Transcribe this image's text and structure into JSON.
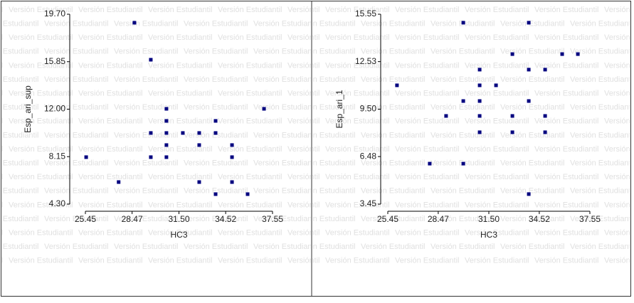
{
  "watermark": "Versión Estudiantil",
  "chart_data": [
    {
      "type": "scatter",
      "x_label": "HC3",
      "y_label": "Esp_ari_sup",
      "color": "#00007f",
      "xlim": [
        25.45,
        37.55
      ],
      "ylim": [
        4.3,
        19.7
      ],
      "xticks": [
        25.45,
        {
          "value": 28.47,
          "label": "28.47"
        },
        {
          "value": 31.5,
          "label": "31.50"
        },
        34.52,
        37.55
      ],
      "yticks": [
        {
          "value": 4.3,
          "label": "4.30"
        },
        8.15,
        {
          "value": 12,
          "label": "12.00"
        },
        15.85,
        {
          "value": 19.7,
          "label": "19.70"
        }
      ],
      "grid": false,
      "x": [
        28.62,
        29.68,
        30.69,
        37.0,
        33.87,
        30.69,
        29.68,
        30.69,
        31.75,
        32.81,
        33.87,
        30.69,
        32.81,
        34.93,
        25.5,
        29.68,
        30.69,
        34.93,
        27.6,
        32.81,
        34.93,
        33.87,
        35.94
      ],
      "y": [
        19.01,
        16.01,
        12.03,
        12.03,
        11.05,
        11.05,
        10.07,
        10.07,
        10.07,
        10.07,
        10.07,
        9.09,
        9.09,
        9.09,
        8.11,
        8.11,
        8.11,
        8.11,
        6.09,
        6.09,
        6.09,
        5.11,
        5.11
      ]
    },
    {
      "type": "scatter",
      "x_label": "HC3",
      "y_label": "Esp_ari_1",
      "color": "#00007f",
      "xlim": [
        25.45,
        37.55
      ],
      "ylim": [
        3.45,
        15.55
      ],
      "xticks": [
        25.45,
        {
          "value": 28.47,
          "label": "28.47"
        },
        {
          "value": 31.5,
          "label": "31.50"
        },
        34.52,
        37.55
      ],
      "yticks": [
        3.45,
        6.48,
        {
          "value": 9.5,
          "label": "9.50"
        },
        12.53,
        15.55
      ],
      "grid": false,
      "x": [
        29.97,
        33.89,
        32.91,
        35.89,
        36.83,
        30.95,
        33.89,
        34.87,
        26.0,
        30.95,
        31.93,
        29.97,
        30.95,
        33.89,
        28.94,
        30.95,
        32.91,
        34.87,
        30.95,
        32.91,
        34.87,
        27.96,
        29.97,
        33.89
      ],
      "y": [
        15.01,
        15.01,
        13.01,
        13.01,
        13.01,
        12.02,
        12.02,
        12.02,
        11.02,
        11.02,
        11.02,
        10.02,
        10.02,
        10.02,
        9.07,
        9.07,
        9.07,
        9.07,
        8.03,
        8.03,
        8.03,
        6.03,
        6.03,
        4.09
      ]
    }
  ]
}
